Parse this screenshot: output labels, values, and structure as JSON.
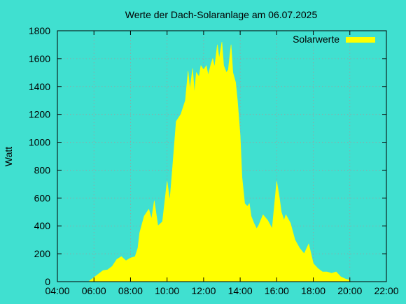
{
  "chart_data": {
    "type": "area",
    "title": "Werte der Dach-Solaranlage am 06.07.2025",
    "xlabel": "",
    "ylabel": "Watt",
    "x_tick_labels": [
      "04:00",
      "06:00",
      "08:00",
      "10:00",
      "12:00",
      "14:00",
      "16:00",
      "18:00",
      "20:00",
      "22:00"
    ],
    "xlim_hours": [
      4,
      22
    ],
    "ylim": [
      0,
      1800
    ],
    "y_ticks": [
      0,
      200,
      400,
      600,
      800,
      1000,
      1200,
      1400,
      1600,
      1800
    ],
    "grid": true,
    "legend_position": "top-right",
    "series": [
      {
        "name": "Solarwerte",
        "color": "#ffff00",
        "x_hours": [
          5.75,
          6.0,
          6.25,
          6.5,
          6.75,
          7.0,
          7.25,
          7.5,
          7.75,
          8.0,
          8.25,
          8.4,
          8.5,
          8.75,
          9.0,
          9.15,
          9.3,
          9.5,
          9.75,
          10.0,
          10.15,
          10.3,
          10.5,
          10.75,
          11.0,
          11.15,
          11.25,
          11.4,
          11.5,
          11.6,
          11.75,
          11.85,
          12.0,
          12.15,
          12.25,
          12.4,
          12.5,
          12.6,
          12.75,
          12.85,
          13.0,
          13.1,
          13.25,
          13.35,
          13.5,
          13.6,
          13.75,
          13.85,
          14.0,
          14.1,
          14.25,
          14.4,
          14.5,
          14.6,
          14.75,
          14.9,
          15.0,
          15.25,
          15.5,
          15.75,
          16.0,
          16.15,
          16.25,
          16.4,
          16.5,
          16.75,
          17.0,
          17.25,
          17.5,
          17.75,
          18.0,
          18.25,
          18.5,
          18.75,
          19.0,
          19.25,
          19.5,
          19.75,
          20.0
        ],
        "y_watt": [
          5,
          30,
          55,
          80,
          85,
          110,
          160,
          180,
          150,
          170,
          180,
          240,
          350,
          470,
          520,
          450,
          580,
          400,
          430,
          720,
          580,
          820,
          1150,
          1200,
          1300,
          1510,
          1380,
          1530,
          1350,
          1500,
          1470,
          1550,
          1520,
          1550,
          1480,
          1560,
          1600,
          1540,
          1700,
          1600,
          1720,
          1550,
          1500,
          1520,
          1700,
          1500,
          1430,
          1300,
          1050,
          750,
          560,
          540,
          560,
          470,
          420,
          380,
          400,
          480,
          440,
          380,
          720,
          600,
          500,
          440,
          480,
          420,
          300,
          240,
          200,
          270,
          130,
          95,
          70,
          70,
          60,
          70,
          35,
          20,
          10
        ]
      }
    ]
  }
}
